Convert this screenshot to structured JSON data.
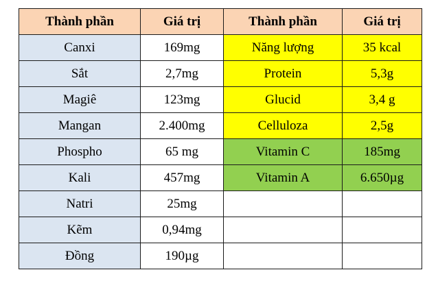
{
  "headers": {
    "left_component": "Thành phần",
    "left_value": "Giá trị",
    "right_component": "Thành phần",
    "right_value": "Giá trị"
  },
  "left_rows": [
    {
      "name": "Canxi",
      "value": "169mg"
    },
    {
      "name": "Sắt",
      "value": "2,7mg"
    },
    {
      "name": "Magiê",
      "value": "123mg"
    },
    {
      "name": "Mangan",
      "value": "2.400mg"
    },
    {
      "name": "Phospho",
      "value": "65 mg"
    },
    {
      "name": "Kali",
      "value": "457mg"
    },
    {
      "name": "Natri",
      "value": "25mg"
    },
    {
      "name": "Kẽm",
      "value": "0,94mg"
    },
    {
      "name": "Đồng",
      "value": "190µg"
    }
  ],
  "right_rows": [
    {
      "name": "Năng lượng",
      "value": "35 kcal",
      "highlight": "yellow"
    },
    {
      "name": "Protein",
      "value": "5,3g",
      "highlight": "yellow"
    },
    {
      "name": "Glucid",
      "value": "3,4 g",
      "highlight": "yellow"
    },
    {
      "name": "Celluloza",
      "value": "2,5g",
      "highlight": "yellow"
    },
    {
      "name": "Vitamin C",
      "value": "185mg",
      "highlight": "green"
    },
    {
      "name": "Vitamin A",
      "value": "6.650µg",
      "highlight": "green"
    }
  ],
  "colors": {
    "header_bg": "#fbd4b4",
    "left_name_bg": "#dbe5f1",
    "yellow_highlight": "#ffff00",
    "green_highlight": "#92d050",
    "border": "#1a1a1a"
  }
}
